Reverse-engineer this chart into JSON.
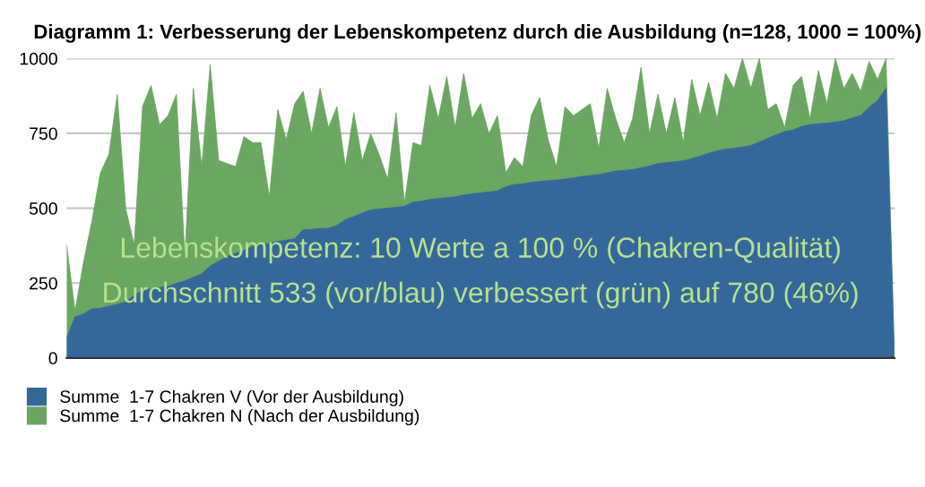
{
  "chart_data": {
    "type": "area",
    "title": "Diagramm 1: Verbesserung der Lebenskompetenz durch die Ausbildung (n=128, 1000 = 100%)",
    "categories": [
      null,
      null,
      null,
      null,
      null,
      null,
      null,
      null,
      null,
      null,
      null,
      null,
      null,
      null,
      null,
      null,
      null,
      null,
      null,
      null,
      null,
      null,
      null,
      null,
      null,
      null,
      null,
      null,
      null,
      null,
      null,
      null,
      null,
      null,
      null,
      null,
      null,
      null,
      null,
      null,
      null,
      null,
      null,
      null,
      null,
      null,
      null,
      null,
      null,
      null,
      null,
      null,
      null,
      null,
      null,
      null,
      null,
      null,
      null,
      null,
      null,
      null,
      null,
      null,
      null,
      null,
      null,
      null,
      null,
      null,
      null,
      null,
      null,
      null,
      null,
      null,
      null,
      null,
      null,
      null,
      null,
      null,
      null,
      null,
      null,
      null,
      null,
      null,
      null,
      null,
      null,
      null,
      null,
      null,
      null,
      null,
      null,
      null,
      null
    ],
    "ylim": [
      0,
      1000
    ],
    "yticks": [
      0,
      250,
      500,
      750,
      1000
    ],
    "tick_labels": "y",
    "grid": "y",
    "legend": "bottom left",
    "annotations": [
      "Lebenskompetenz: 10 Werte a 100 % (Chakren-Qualität)",
      "Durchschnitt 533 (vor/blau) verbessert (grün) auf 780 (46%)"
    ],
    "series": [
      {
        "name": "Summe  1-7 Chakren N (Nach der Ausbildung)",
        "color": "#6aa760",
        "values": [
          378,
          157,
          319,
          458,
          618,
          679,
          880,
          498,
          378,
          841,
          910,
          779,
          809,
          880,
          337,
          900,
          639,
          980,
          659,
          649,
          639,
          739,
          719,
          719,
          538,
          829,
          729,
          849,
          890,
          749,
          900,
          769,
          839,
          639,
          819,
          659,
          749,
          679,
          598,
          819,
          518,
          719,
          709,
          910,
          799,
          940,
          769,
          950,
          799,
          849,
          749,
          809,
          618,
          669,
          639,
          809,
          869,
          729,
          639,
          839,
          809,
          829,
          849,
          699,
          900,
          799,
          719,
          799,
          970,
          749,
          880,
          749,
          869,
          719,
          930,
          809,
          920,
          799,
          950,
          900,
          1000,
          900,
          1000,
          829,
          849,
          769,
          910,
          940,
          799,
          960,
          849,
          1000,
          900,
          950,
          890,
          990,
          930,
          1000,
          0
        ]
      },
      {
        "name": "Summe  1-7 Chakren V (Vor der Ausbildung)",
        "color": "#35689a",
        "values": [
          66,
          137,
          147,
          164,
          166,
          173,
          179,
          187,
          209,
          227,
          230,
          235,
          239,
          249,
          257,
          269,
          281,
          307,
          323,
          338,
          349,
          359,
          372,
          378,
          383,
          389,
          393,
          398,
          428,
          429,
          432,
          433,
          442,
          462,
          472,
          484,
          494,
          497,
          500,
          503,
          506,
          520,
          523,
          529,
          532,
          535,
          538,
          544,
          548,
          551,
          554,
          558,
          572,
          579,
          581,
          586,
          589,
          592,
          594,
          597,
          601,
          606,
          609,
          612,
          618,
          624,
          626,
          629,
          635,
          641,
          649,
          652,
          655,
          658,
          665,
          674,
          683,
          691,
          697,
          700,
          704,
          709,
          721,
          733,
          745,
          756,
          761,
          773,
          779,
          782,
          784,
          787,
          792,
          801,
          809,
          837,
          859,
          900,
          0
        ]
      }
    ]
  }
}
